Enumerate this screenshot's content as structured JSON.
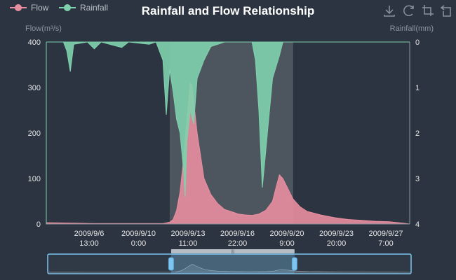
{
  "chart_data": {
    "type": "area",
    "title": "Rainfall and Flow Relationship",
    "legend": [
      "Flow",
      "Rainfall"
    ],
    "legend_position": "top-left",
    "colors": {
      "flow": "#e98ea0",
      "rainfall": "#7fd1ad",
      "background": "#2b3440",
      "zoom_band": "#5a6168",
      "slider": "#7ec5f0"
    },
    "y_left": {
      "label": "Flow(m³/s)",
      "min": 0,
      "max": 400,
      "ticks": [
        "0",
        "100",
        "200",
        "300",
        "400"
      ]
    },
    "y_right": {
      "label": "Rainfall(mm)",
      "min": 0,
      "max": 4,
      "inverse": true,
      "ticks": [
        "0",
        "1",
        "2",
        "3",
        "4"
      ]
    },
    "x": {
      "start": "2009-09-03 00:00",
      "end": "2009-09-29 12:00",
      "tick_labels": [
        [
          "2009/9/6",
          "13:00"
        ],
        [
          "2009/9/10",
          "0:00"
        ],
        [
          "2009/9/13",
          "11:00"
        ],
        [
          "2009/9/16",
          "22:00"
        ],
        [
          "2009/9/20",
          "9:00"
        ],
        [
          "2009/9/23",
          "20:00"
        ],
        [
          "2009/9/27",
          "7:00"
        ]
      ]
    },
    "mark_area": {
      "from": "2009-09-12 00:00",
      "to": "2009-09-21 00:00"
    },
    "series": [
      {
        "name": "Flow",
        "points": [
          [
            "2009-09-03 00:00",
            3
          ],
          [
            "2009-09-05 00:00",
            2
          ],
          [
            "2009-09-06 12:00",
            1
          ],
          [
            "2009-09-08 00:00",
            1
          ],
          [
            "2009-09-10 00:00",
            1
          ],
          [
            "2009-09-11 12:00",
            1
          ],
          [
            "2009-09-12 00:00",
            4
          ],
          [
            "2009-09-12 06:00",
            10
          ],
          [
            "2009-09-12 12:00",
            30
          ],
          [
            "2009-09-12 18:00",
            70
          ],
          [
            "2009-09-13 00:00",
            140
          ],
          [
            "2009-09-13 06:00",
            230
          ],
          [
            "2009-09-13 12:00",
            310
          ],
          [
            "2009-09-13 15:00",
            305
          ],
          [
            "2009-09-13 18:00",
            270
          ],
          [
            "2009-09-14 00:00",
            200
          ],
          [
            "2009-09-14 06:00",
            150
          ],
          [
            "2009-09-14 12:00",
            100
          ],
          [
            "2009-09-15 00:00",
            65
          ],
          [
            "2009-09-15 12:00",
            45
          ],
          [
            "2009-09-16 00:00",
            32
          ],
          [
            "2009-09-16 12:00",
            27
          ],
          [
            "2009-09-17 00:00",
            22
          ],
          [
            "2009-09-17 12:00",
            20
          ],
          [
            "2009-09-18 00:00",
            19
          ],
          [
            "2009-09-18 12:00",
            22
          ],
          [
            "2009-09-19 00:00",
            30
          ],
          [
            "2009-09-19 12:00",
            50
          ],
          [
            "2009-09-19 18:00",
            80
          ],
          [
            "2009-09-20 00:00",
            108
          ],
          [
            "2009-09-20 06:00",
            100
          ],
          [
            "2009-09-20 12:00",
            85
          ],
          [
            "2009-09-21 00:00",
            55
          ],
          [
            "2009-09-21 12:00",
            38
          ],
          [
            "2009-09-22 00:00",
            28
          ],
          [
            "2009-09-23 00:00",
            20
          ],
          [
            "2009-09-24 00:00",
            14
          ],
          [
            "2009-09-25 00:00",
            10
          ],
          [
            "2009-09-26 00:00",
            8
          ],
          [
            "2009-09-27 00:00",
            6
          ],
          [
            "2009-09-28 00:00",
            5
          ],
          [
            "2009-09-29 00:00",
            2
          ],
          [
            "2009-09-29 12:00",
            0
          ]
        ]
      },
      {
        "name": "Rainfall",
        "points": [
          [
            "2009-09-03 00:00",
            0
          ],
          [
            "2009-09-04 06:00",
            0
          ],
          [
            "2009-09-04 12:00",
            0.2
          ],
          [
            "2009-09-04 18:00",
            0.65
          ],
          [
            "2009-09-05 00:00",
            0.05
          ],
          [
            "2009-09-06 00:00",
            0
          ],
          [
            "2009-09-06 12:00",
            0.15
          ],
          [
            "2009-09-07 00:00",
            0
          ],
          [
            "2009-09-08 12:00",
            0.12
          ],
          [
            "2009-09-09 00:00",
            0
          ],
          [
            "2009-09-10 12:00",
            0.05
          ],
          [
            "2009-09-11 00:00",
            0
          ],
          [
            "2009-09-11 12:00",
            0.4
          ],
          [
            "2009-09-11 18:00",
            1.6
          ],
          [
            "2009-09-12 00:00",
            0.6
          ],
          [
            "2009-09-12 06:00",
            1.1
          ],
          [
            "2009-09-12 12:00",
            1.7
          ],
          [
            "2009-09-12 18:00",
            2.0
          ],
          [
            "2009-09-13 00:00",
            2.8
          ],
          [
            "2009-09-13 03:00",
            3.4
          ],
          [
            "2009-09-13 06:00",
            2.2
          ],
          [
            "2009-09-13 12:00",
            1.5
          ],
          [
            "2009-09-13 18:00",
            1.8
          ],
          [
            "2009-09-14 00:00",
            0.8
          ],
          [
            "2009-09-14 12:00",
            0.4
          ],
          [
            "2009-09-15 00:00",
            0.1
          ],
          [
            "2009-09-16 00:00",
            0
          ],
          [
            "2009-09-18 00:00",
            0
          ],
          [
            "2009-09-18 06:00",
            0.4
          ],
          [
            "2009-09-18 12:00",
            1.5
          ],
          [
            "2009-09-18 18:00",
            3.2
          ],
          [
            "2009-09-19 00:00",
            2.4
          ],
          [
            "2009-09-19 06:00",
            1.6
          ],
          [
            "2009-09-19 12:00",
            0.8
          ],
          [
            "2009-09-20 00:00",
            0.3
          ],
          [
            "2009-09-20 06:00",
            0
          ],
          [
            "2009-09-29 12:00",
            0
          ]
        ]
      }
    ],
    "data_zoom": {
      "start": "2009-09-12 00:00",
      "end": "2009-09-21 00:00",
      "handle_label": "|||"
    },
    "toolbox": [
      "download-icon",
      "restore-icon",
      "zoom-select-icon",
      "zoom-back-icon"
    ]
  }
}
